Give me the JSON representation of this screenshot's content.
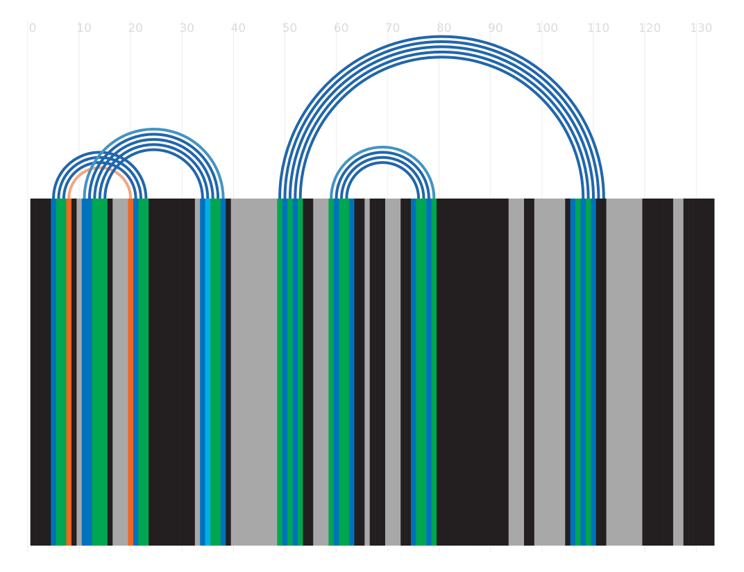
{
  "chart_data": {
    "type": "arc",
    "xlim": [
      0,
      134.5
    ],
    "xticks": [
      0,
      10,
      20,
      30,
      40,
      50,
      60,
      70,
      80,
      90,
      100,
      110,
      120,
      130
    ],
    "grid": true,
    "column_colors": [
      "#231f20",
      "#231f20",
      "#231f20",
      "#231f20",
      "#0072bc",
      "#00a650",
      "#00a650",
      "#f26522",
      "#231f20",
      "#a8a8a8",
      "#0072bc",
      "#0072bc",
      "#00a650",
      "#00a650",
      "#00a650",
      "#231f20",
      "#a8a8a8",
      "#a8a8a8",
      "#a8a8a8",
      "#f26522",
      "#0072bc",
      "#00a650",
      "#00a650",
      "#231f20",
      "#231f20",
      "#231f20",
      "#231f20",
      "#231f20",
      "#231f20",
      "#231f20",
      "#231f20",
      "#231f20",
      "#a8a8a8",
      "#0072bc",
      "#00aeef",
      "#00a650",
      "#00a650",
      "#0072bc",
      "#231f20",
      "#a8a8a8",
      "#a8a8a8",
      "#a8a8a8",
      "#a8a8a8",
      "#a8a8a8",
      "#a8a8a8",
      "#a8a8a8",
      "#a8a8a8",
      "#a8a8a8",
      "#00a650",
      "#0072bc",
      "#00a650",
      "#0072bc",
      "#00a650",
      "#231f20",
      "#231f20",
      "#a8a8a8",
      "#a8a8a8",
      "#a8a8a8",
      "#00a650",
      "#0072bc",
      "#00a650",
      "#00a650",
      "#0072bc",
      "#231f20",
      "#231f20",
      "#a8a8a8",
      "#231f20",
      "#231f20",
      "#231f20",
      "#a8a8a8",
      "#a8a8a8",
      "#a8a8a8",
      "#231f20",
      "#231f20",
      "#0072bc",
      "#00a650",
      "#00a650",
      "#0072bc",
      "#00a650",
      "#231f20",
      "#231f20",
      "#231f20",
      "#231f20",
      "#231f20",
      "#231f20",
      "#231f20",
      "#231f20",
      "#231f20",
      "#231f20",
      "#231f20",
      "#231f20",
      "#231f20",
      "#231f20",
      "#a8a8a8",
      "#a8a8a8",
      "#a8a8a8",
      "#231f20",
      "#231f20",
      "#a8a8a8",
      "#a8a8a8",
      "#a8a8a8",
      "#a8a8a8",
      "#a8a8a8",
      "#a8a8a8",
      "#231f20",
      "#0072bc",
      "#00a650",
      "#0072bc",
      "#00a650",
      "#0072bc",
      "#231f20",
      "#231f20",
      "#a8a8a8",
      "#a8a8a8",
      "#a8a8a8",
      "#a8a8a8",
      "#a8a8a8",
      "#a8a8a8",
      "#a8a8a8",
      "#231f20",
      "#231f20",
      "#231f20",
      "#231f20",
      "#231f20",
      "#231f20",
      "#a8a8a8",
      "#a8a8a8",
      "#231f20",
      "#231f20",
      "#231f20",
      "#231f20",
      "#231f20",
      "#231f20"
    ],
    "arcs": [
      {
        "start": 5,
        "end": 23,
        "color": "#2166ac"
      },
      {
        "start": 6,
        "end": 22,
        "color": "#2166ac"
      },
      {
        "start": 7,
        "end": 21,
        "color": "#2166ac"
      },
      {
        "start": 8,
        "end": 20,
        "color": "#f4a582"
      },
      {
        "start": 11,
        "end": 38,
        "color": "#4393c3"
      },
      {
        "start": 12,
        "end": 37,
        "color": "#2166ac"
      },
      {
        "start": 13,
        "end": 36,
        "color": "#2166ac"
      },
      {
        "start": 14,
        "end": 35,
        "color": "#2166ac"
      },
      {
        "start": 15,
        "end": 34,
        "color": "#2166ac"
      },
      {
        "start": 49,
        "end": 112,
        "color": "#2166ac"
      },
      {
        "start": 50,
        "end": 111,
        "color": "#2166ac"
      },
      {
        "start": 51,
        "end": 110,
        "color": "#2166ac"
      },
      {
        "start": 52,
        "end": 109,
        "color": "#2166ac"
      },
      {
        "start": 53,
        "end": 108,
        "color": "#2166ac"
      },
      {
        "start": 59,
        "end": 79,
        "color": "#4393c3"
      },
      {
        "start": 60,
        "end": 78,
        "color": "#2166ac"
      },
      {
        "start": 61,
        "end": 77,
        "color": "#2166ac"
      },
      {
        "start": 62,
        "end": 76,
        "color": "#2166ac"
      }
    ]
  }
}
